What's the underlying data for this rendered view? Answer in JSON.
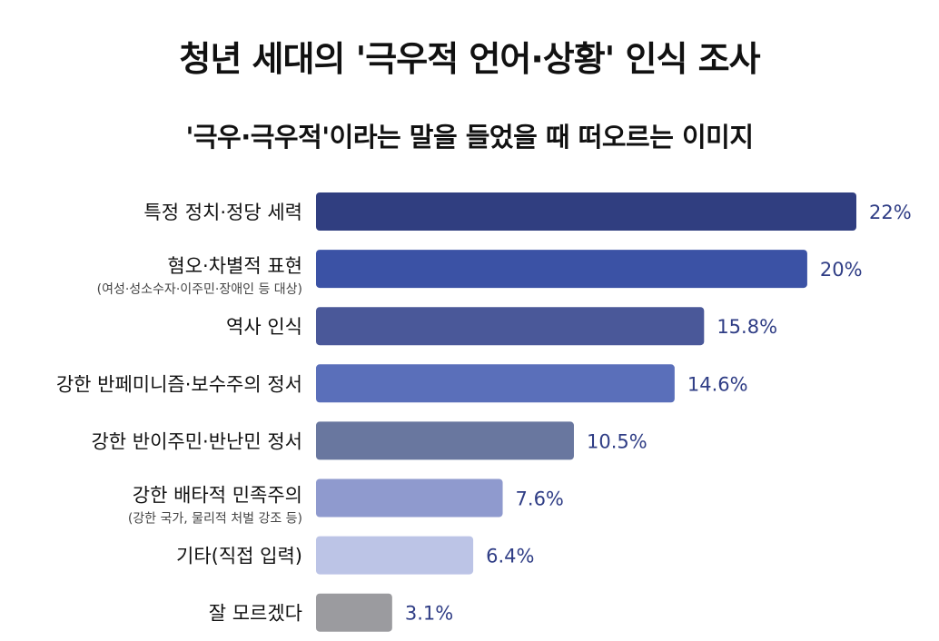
{
  "chart_data": {
    "type": "bar",
    "orientation": "horizontal",
    "title": "청년 세대의 '극우적 언어·상황' 인식 조사",
    "subtitle": "'극우·극우적'이라는 말을 들었을 때 떠오르는 이미지",
    "xlabel": "",
    "ylabel": "",
    "xlim": [
      0,
      22
    ],
    "grid": false,
    "legend": "none",
    "unit": "%",
    "categories": [
      "특정 정치·정당 세력",
      "혐오·차별적 표현",
      "역사 인식",
      "강한 반페미니즘·보수주의 정서",
      "강한 반이주민·반난민 정서",
      "강한 배타적 민족주의",
      "기타(직접 입력)",
      "잘 모르겠다"
    ],
    "category_notes": [
      "",
      "(여성·성소수자·이주민·장애인 등 대상)",
      "",
      "",
      "",
      "(강한 국가, 물리적 처벌 강조 등)",
      "",
      ""
    ],
    "values": [
      22,
      20,
      15.8,
      14.6,
      10.5,
      7.6,
      6.4,
      3.1
    ],
    "value_labels": [
      "22%",
      "20%",
      "15.8%",
      "14.6%",
      "10.5%",
      "7.6%",
      "6.4%",
      "3.1%"
    ],
    "colors": [
      "#303e80",
      "#3b52a5",
      "#4a5899",
      "#5a6fba",
      "#69779f",
      "#8f9ace",
      "#bcc4e6",
      "#9b9b9f"
    ],
    "value_label_color": "#2f3d85"
  }
}
